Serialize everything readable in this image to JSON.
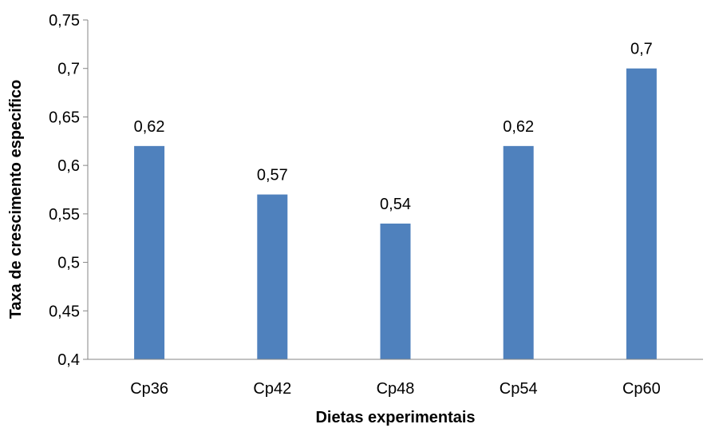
{
  "chart_data": {
    "type": "bar",
    "categories": [
      "Cp36",
      "Cp42",
      "Cp48",
      "Cp54",
      "Cp60"
    ],
    "values": [
      0.62,
      0.57,
      0.54,
      0.62,
      0.7
    ],
    "value_labels": [
      "0,62",
      "0,57",
      "0,54",
      "0,62",
      "0,7"
    ],
    "xlabel": "Dietas experimentais",
    "ylabel": "Taxa de crescimento especifico",
    "ylim": [
      0.4,
      0.75
    ],
    "yticks": [
      0.4,
      0.45,
      0.5,
      0.55,
      0.6,
      0.65,
      0.7,
      0.75
    ],
    "ytick_labels": [
      "0,4",
      "0,45",
      "0,5",
      "0,55",
      "0,6",
      "0,65",
      "0,7",
      "0,75"
    ],
    "grid": false,
    "legend": "none",
    "bar_color": "#4F81BD",
    "axis_color": "#868686"
  }
}
